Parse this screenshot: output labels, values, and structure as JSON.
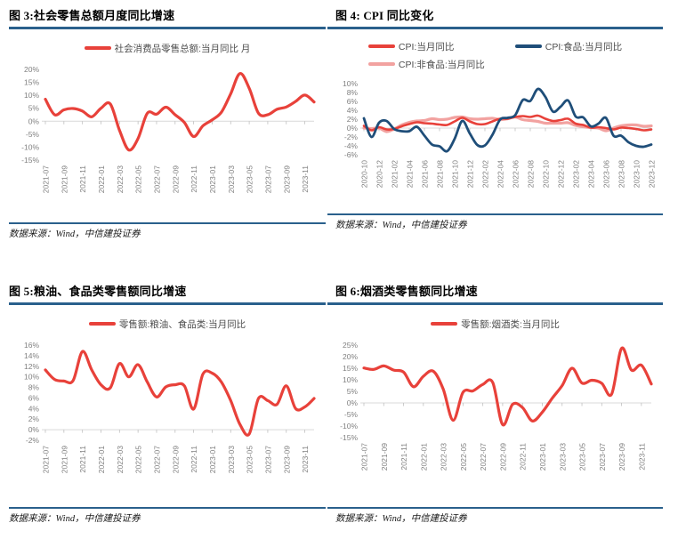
{
  "figures": [
    {
      "title": "图 3:社会零售总额月度同比增速",
      "source": "数据来源：Wind，中信建投证券"
    },
    {
      "title": "图 4: CPI 同比变化",
      "source": "数据来源：Wind，中信建投证券"
    },
    {
      "title": "图 5:粮油、食品类零售额同比增速",
      "source": "数据来源：Wind，中信建投证券"
    },
    {
      "title": "图 6:烟酒类零售额同比增速",
      "source": "数据来源：Wind，中信建投证券"
    }
  ],
  "colors": {
    "rule_blue": "#2A608C",
    "red": "#E8413A",
    "navy": "#1F4E79",
    "pink": "#F2A2A0",
    "axis_text": "#808080",
    "legend_text": "#4D4D4D",
    "zero_line": "#D9D9D9",
    "tick": "#BFBFBF"
  },
  "chart_data": [
    {
      "type": "line",
      "title": "社会零售总额月度同比增速",
      "x_months": [
        "2021-07",
        "2021-08",
        "2021-09",
        "2021-10",
        "2021-11",
        "2021-12",
        "2022-01",
        "2022-02",
        "2022-03",
        "2022-04",
        "2022-05",
        "2022-06",
        "2022-07",
        "2022-08",
        "2022-09",
        "2022-10",
        "2022-11",
        "2022-12",
        "2023-01",
        "2023-02",
        "2023-03",
        "2023-04",
        "2023-05",
        "2023-06",
        "2023-07",
        "2023-08",
        "2023-09",
        "2023-10",
        "2023-11",
        "2023-12"
      ],
      "tick_labels": [
        "2021-07",
        "2021-09",
        "2021-11",
        "2022-01",
        "2022-03",
        "2022-05",
        "2022-07",
        "2022-09",
        "2022-11",
        "2023-01",
        "2023-03",
        "2023-05",
        "2023-07",
        "2023-09",
        "2023-11"
      ],
      "tick_every": 2,
      "ylim": [
        -15,
        20
      ],
      "y_ticks": [
        "20%",
        "15%",
        "10%",
        "5%",
        "0%",
        "-5%",
        "-10%",
        "-15%"
      ],
      "y_tick_values": [
        20,
        15,
        10,
        5,
        0,
        -5,
        -10,
        -15
      ],
      "grid": false,
      "legend_position": "top-center",
      "series": [
        {
          "name": "社会消费品零售总额:当月同比 月",
          "color": "#E8413A",
          "width": 3.2,
          "values": [
            8.5,
            2.5,
            4.4,
            4.9,
            3.9,
            1.7,
            5.0,
            6.7,
            -3.5,
            -11.1,
            -6.7,
            3.1,
            2.7,
            5.4,
            2.5,
            -0.5,
            -5.9,
            -1.8,
            0.5,
            3.5,
            10.6,
            18.4,
            12.7,
            3.1,
            2.5,
            4.6,
            5.5,
            7.6,
            10.1,
            7.4
          ]
        }
      ]
    },
    {
      "type": "line",
      "title": "CPI 同比变化",
      "x_months": [
        "2020-10",
        "2020-11",
        "2020-12",
        "2021-01",
        "2021-02",
        "2021-03",
        "2021-04",
        "2021-05",
        "2021-06",
        "2021-07",
        "2021-08",
        "2021-09",
        "2021-10",
        "2021-11",
        "2021-12",
        "2022-01",
        "2022-02",
        "2022-03",
        "2022-04",
        "2022-05",
        "2022-06",
        "2022-07",
        "2022-08",
        "2022-09",
        "2022-10",
        "2022-11",
        "2022-12",
        "2023-01",
        "2023-02",
        "2023-03",
        "2023-04",
        "2023-05",
        "2023-06",
        "2023-07",
        "2023-08",
        "2023-09",
        "2023-10",
        "2023-11",
        "2023-12"
      ],
      "tick_labels": [
        "2020-10",
        "2020-12",
        "2021-02",
        "2021-04",
        "2021-06",
        "2021-08",
        "2021-10",
        "2021-12",
        "2022-02",
        "2022-04",
        "2022-06",
        "2022-08",
        "2022-10",
        "2022-12",
        "2023-02",
        "2023-04",
        "2023-06",
        "2023-08",
        "2023-10",
        "2023-12"
      ],
      "tick_every": 2,
      "ylim": [
        -6,
        10
      ],
      "y_ticks": [
        "10%",
        "8%",
        "6%",
        "4%",
        "2%",
        "0%",
        "-2%",
        "-4%",
        "-6%"
      ],
      "y_tick_values": [
        10,
        8,
        6,
        4,
        2,
        0,
        -2,
        -4,
        -6
      ],
      "grid": false,
      "legend_position": "top-center",
      "legend_layout": "grid",
      "draw_order": [
        2,
        0,
        1
      ],
      "series": [
        {
          "name": "CPI:当月同比",
          "color": "#E8413A",
          "width": 2.6,
          "values": [
            0.5,
            -0.5,
            0.2,
            -0.3,
            -0.2,
            0.4,
            0.9,
            1.3,
            1.1,
            1.0,
            0.8,
            0.7,
            1.5,
            2.3,
            1.5,
            0.9,
            0.9,
            1.5,
            2.1,
            2.1,
            2.5,
            2.7,
            2.5,
            2.8,
            2.1,
            1.6,
            1.8,
            2.1,
            1.0,
            0.7,
            0.1,
            0.2,
            0.0,
            -0.3,
            0.1,
            0.0,
            -0.2,
            -0.5,
            -0.3
          ]
        },
        {
          "name": "CPI:食品:当月同比",
          "color": "#1F4E79",
          "width": 2.8,
          "values": [
            2.2,
            -2.0,
            1.2,
            1.6,
            -0.2,
            -0.7,
            -0.7,
            0.3,
            -1.7,
            -3.7,
            -4.1,
            -5.2,
            -2.4,
            1.6,
            -1.2,
            -3.8,
            -3.9,
            -1.5,
            1.9,
            2.3,
            2.9,
            6.3,
            6.1,
            8.8,
            7.0,
            3.7,
            4.8,
            6.2,
            2.6,
            2.4,
            0.4,
            1.0,
            2.3,
            -1.7,
            -1.7,
            -3.2,
            -4.0,
            -4.2,
            -3.7
          ]
        },
        {
          "name": "CPI:非食品:当月同比",
          "color": "#F2A2A0",
          "width": 3.2,
          "values": [
            0.0,
            -0.1,
            0.0,
            -0.8,
            -0.2,
            0.7,
            1.3,
            1.6,
            1.7,
            2.1,
            1.9,
            2.0,
            2.4,
            2.5,
            2.1,
            2.0,
            2.1,
            2.2,
            1.9,
            2.1,
            2.5,
            1.9,
            1.7,
            1.5,
            1.1,
            1.1,
            1.1,
            1.2,
            0.6,
            0.3,
            0.1,
            0.0,
            -0.6,
            0.0,
            0.5,
            0.7,
            0.7,
            0.4,
            0.5
          ]
        }
      ]
    },
    {
      "type": "line",
      "title": "粮油、食品类零售额同比增速",
      "x_months": [
        "2021-07",
        "2021-08",
        "2021-09",
        "2021-10",
        "2021-11",
        "2021-12",
        "2022-01",
        "2022-02",
        "2022-03",
        "2022-04",
        "2022-05",
        "2022-06",
        "2022-07",
        "2022-08",
        "2022-09",
        "2022-10",
        "2022-11",
        "2022-12",
        "2023-01",
        "2023-02",
        "2023-03",
        "2023-04",
        "2023-05",
        "2023-06",
        "2023-07",
        "2023-08",
        "2023-09",
        "2023-10",
        "2023-11",
        "2023-12"
      ],
      "tick_labels": [
        "2021-07",
        "2021-09",
        "2021-11",
        "2022-01",
        "2022-03",
        "2022-05",
        "2022-07",
        "2022-09",
        "2022-11",
        "2023-01",
        "2023-03",
        "2023-05",
        "2023-07",
        "2023-09",
        "2023-11"
      ],
      "tick_every": 2,
      "ylim": [
        -2,
        16
      ],
      "y_ticks": [
        "16%",
        "14%",
        "12%",
        "10%",
        "8%",
        "6%",
        "4%",
        "2%",
        "0%",
        "-2%"
      ],
      "y_tick_values": [
        16,
        14,
        12,
        10,
        8,
        6,
        4,
        2,
        0,
        -2
      ],
      "grid": false,
      "legend_position": "top-center",
      "series": [
        {
          "name": "零售额:粮油、食品类:当月同比",
          "color": "#E8413A",
          "width": 3.2,
          "values": [
            11.3,
            9.5,
            9.2,
            9.3,
            14.8,
            11.3,
            8.5,
            7.9,
            12.5,
            10.0,
            12.3,
            9.0,
            6.2,
            8.1,
            8.5,
            8.3,
            3.9,
            10.5,
            10.7,
            9.0,
            5.5,
            1.0,
            -0.8,
            5.9,
            5.5,
            4.8,
            8.3,
            4.0,
            4.3,
            5.9
          ]
        }
      ]
    },
    {
      "type": "line",
      "title": "烟酒类零售额同比增速",
      "x_months": [
        "2021-07",
        "2021-08",
        "2021-09",
        "2021-10",
        "2021-11",
        "2021-12",
        "2022-01",
        "2022-02",
        "2022-03",
        "2022-04",
        "2022-05",
        "2022-06",
        "2022-07",
        "2022-08",
        "2022-09",
        "2022-10",
        "2022-11",
        "2022-12",
        "2023-01",
        "2023-02",
        "2023-03",
        "2023-04",
        "2023-05",
        "2023-06",
        "2023-07",
        "2023-08",
        "2023-09",
        "2023-10",
        "2023-11",
        "2023-12"
      ],
      "tick_labels": [
        "2021-07",
        "2021-09",
        "2021-11",
        "2022-01",
        "2022-03",
        "2022-05",
        "2022-07",
        "2022-09",
        "2022-11",
        "2023-01",
        "2023-03",
        "2023-05",
        "2023-07",
        "2023-09",
        "2023-11"
      ],
      "tick_every": 2,
      "ylim": [
        -15,
        25
      ],
      "y_ticks": [
        "25%",
        "20%",
        "15%",
        "10%",
        "5%",
        "0%",
        "-5%",
        "-10%",
        "-15%"
      ],
      "y_tick_values": [
        25,
        20,
        15,
        10,
        5,
        0,
        -5,
        -10,
        -15
      ],
      "grid": false,
      "legend_position": "top-center",
      "series": [
        {
          "name": "零售额:烟酒类:当月同比",
          "color": "#E8413A",
          "width": 3.2,
          "values": [
            15.1,
            14.5,
            16.0,
            14.2,
            13.3,
            7.0,
            11.5,
            13.7,
            6.0,
            -7.5,
            4.6,
            5.2,
            8.0,
            8.8,
            -9.4,
            -0.6,
            -2.0,
            -7.8,
            -4.0,
            2.0,
            7.5,
            15.0,
            8.6,
            9.8,
            8.5,
            3.8,
            23.6,
            14.2,
            16.3,
            8.2
          ]
        }
      ]
    }
  ]
}
